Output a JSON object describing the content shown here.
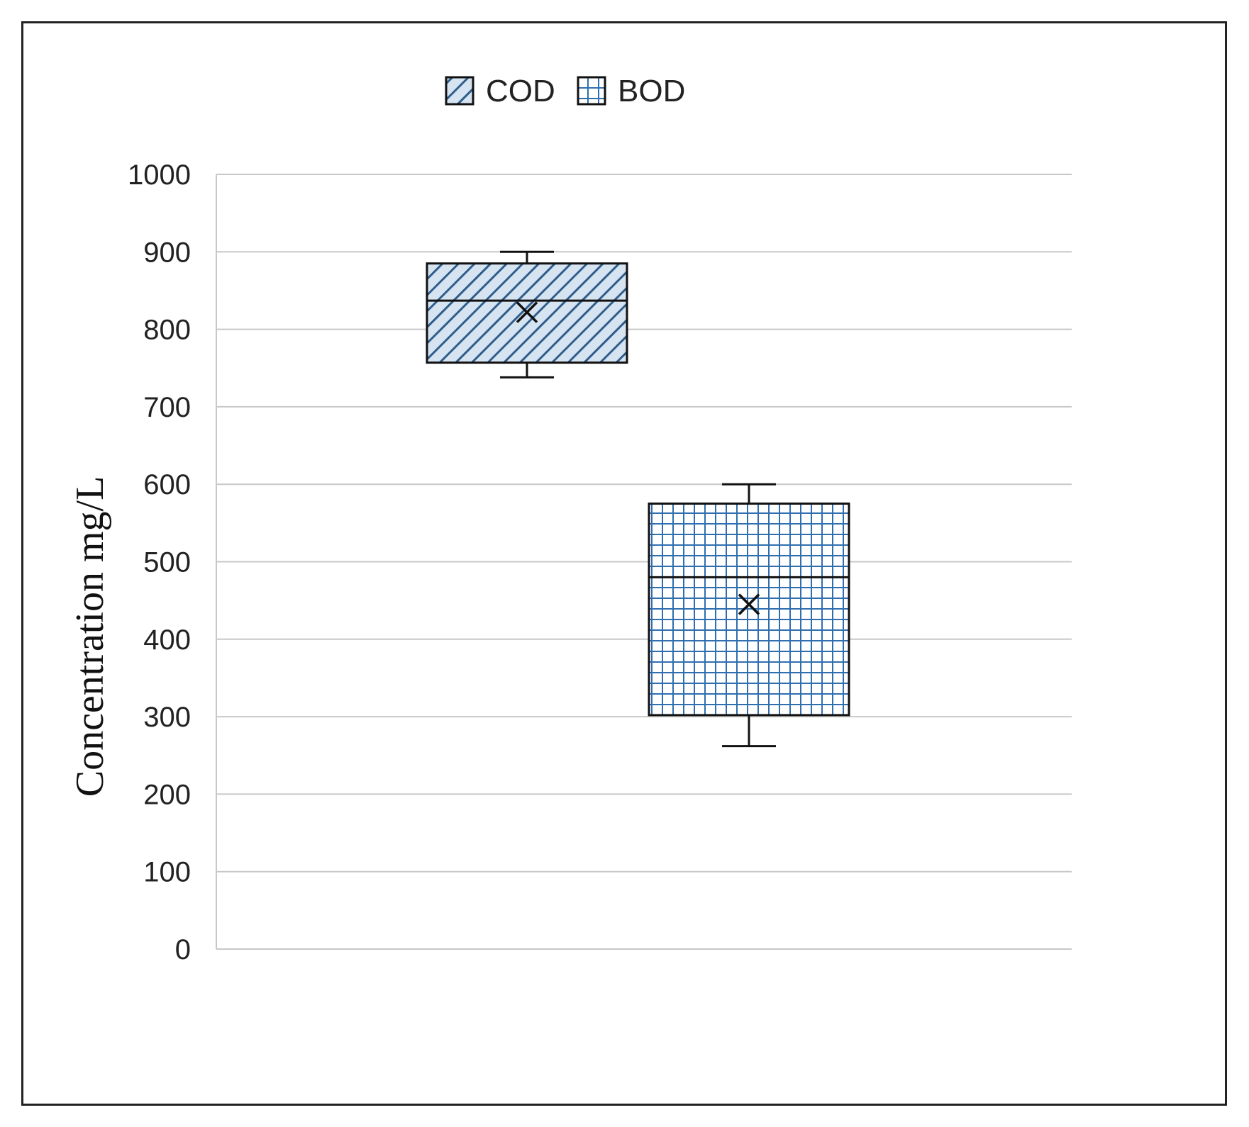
{
  "chart_data": {
    "type": "box",
    "title": "",
    "xlabel": "",
    "ylabel": "Concentration mg/L",
    "ylim": [
      0,
      1000
    ],
    "yticks": [
      0,
      100,
      200,
      300,
      400,
      500,
      600,
      700,
      800,
      900,
      1000
    ],
    "grid": true,
    "legend_position": "top-center",
    "series": [
      {
        "name": "COD",
        "pattern": "diagonal-hatch",
        "color": "#2F5D8C",
        "fill_light": "#D6E4F2",
        "min": 738,
        "q1": 757,
        "median": 837,
        "q3": 885,
        "max": 900,
        "mean": 822
      },
      {
        "name": "BOD",
        "pattern": "grid",
        "color": "#2F6FB0",
        "fill_light": "#FFFFFF",
        "min": 262,
        "q1": 302,
        "median": 480,
        "q3": 575,
        "max": 600,
        "mean": 445
      }
    ]
  }
}
